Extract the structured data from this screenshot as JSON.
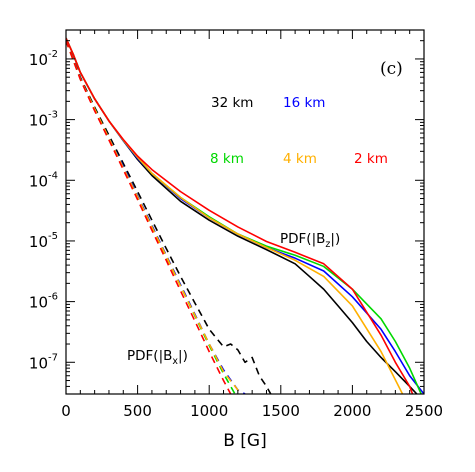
{
  "chart_data": {
    "type": "line",
    "panel_label": "(c)",
    "xlabel": "B [G]",
    "ylabel": "",
    "xlim": [
      0,
      2500
    ],
    "ylim": [
      3e-08,
      0.03
    ],
    "yscale": "log",
    "x_ticks": [
      0,
      500,
      1000,
      1500,
      2000,
      2500
    ],
    "x_tick_labels": [
      "0",
      "500",
      "1000",
      "1500",
      "2000",
      "2500"
    ],
    "y_ticks": [
      1e-07,
      1e-06,
      1e-05,
      0.0001,
      0.001,
      0.01
    ],
    "y_tick_labels": [
      {
        "base": "10",
        "exp": "-7"
      },
      {
        "base": "10",
        "exp": "-6"
      },
      {
        "base": "10",
        "exp": "-5"
      },
      {
        "base": "10",
        "exp": "-4"
      },
      {
        "base": "10",
        "exp": "-3"
      },
      {
        "base": "10",
        "exp": "-2"
      }
    ],
    "annotations": [
      {
        "name": "pdf-bz",
        "prefix": "PDF(|B",
        "sub": "z",
        "suffix": "|)"
      },
      {
        "name": "pdf-bx",
        "prefix": "PDF(|B",
        "sub": "x",
        "suffix": "|)"
      }
    ],
    "legend": [
      {
        "label": "32 km",
        "color": "#000000"
      },
      {
        "label": "16 km",
        "color": "#0000ff"
      },
      {
        "label": "8 km",
        "color": "#00d800"
      },
      {
        "label": "4 km",
        "color": "#ffb000"
      },
      {
        "label": "2 km",
        "color": "#ff0000"
      }
    ],
    "series": [
      {
        "name": "32 km",
        "component": "Bz",
        "style": "solid",
        "color": "#000000",
        "x": [
          0,
          50,
          100,
          200,
          300,
          400,
          500,
          600,
          800,
          1000,
          1200,
          1400,
          1600,
          1700,
          1800,
          1900,
          2000,
          2100,
          2200,
          2300,
          2400,
          2450
        ],
        "y": [
          0.022,
          0.012,
          0.006,
          0.0022,
          0.00095,
          0.00045,
          0.00022,
          0.00012,
          4.5e-05,
          2.2e-05,
          1.2e-05,
          7.2e-06,
          4.2e-06,
          2.6e-06,
          1.6e-06,
          8.5e-07,
          4.5e-07,
          2.2e-07,
          1.2e-07,
          7e-08,
          4e-08,
          3e-08
        ]
      },
      {
        "name": "16 km",
        "component": "Bz",
        "style": "solid",
        "color": "#0000ff",
        "x": [
          0,
          50,
          100,
          200,
          300,
          400,
          500,
          600,
          800,
          1000,
          1200,
          1400,
          1600,
          1800,
          2000,
          2200,
          2300,
          2400,
          2500
        ],
        "y": [
          0.022,
          0.012,
          0.006,
          0.0022,
          0.00095,
          0.00045,
          0.00023,
          0.00013,
          5e-05,
          2.4e-05,
          1.3e-05,
          7.8e-06,
          5.2e-06,
          3.2e-06,
          1.2e-06,
          3.5e-07,
          1.5e-07,
          6e-08,
          3e-08
        ]
      },
      {
        "name": "8 km",
        "component": "Bz",
        "style": "solid",
        "color": "#00d800",
        "x": [
          0,
          50,
          100,
          200,
          300,
          400,
          500,
          600,
          800,
          1000,
          1200,
          1400,
          1600,
          1800,
          2000,
          2200,
          2300,
          2400,
          2480
        ],
        "y": [
          0.022,
          0.012,
          0.006,
          0.0022,
          0.00095,
          0.00046,
          0.00024,
          0.00013,
          5.2e-05,
          2.5e-05,
          1.3e-05,
          8.2e-06,
          5.8e-06,
          3.8e-06,
          1.6e-06,
          5.2e-07,
          2.2e-07,
          8e-08,
          3e-08
        ]
      },
      {
        "name": "4 km",
        "component": "Bz",
        "style": "solid",
        "color": "#ffb000",
        "x": [
          0,
          50,
          100,
          200,
          300,
          400,
          500,
          600,
          800,
          1000,
          1200,
          1400,
          1600,
          1800,
          2000,
          2200,
          2350
        ],
        "y": [
          0.022,
          0.012,
          0.006,
          0.0022,
          0.00095,
          0.00046,
          0.00024,
          0.00013,
          5.2e-05,
          2.4e-05,
          1.3e-05,
          7.8e-06,
          4.8e-06,
          2.6e-06,
          8.5e-07,
          1.5e-07,
          3e-08
        ]
      },
      {
        "name": "2 km",
        "component": "Bz",
        "style": "solid",
        "color": "#ff0000",
        "x": [
          0,
          50,
          100,
          200,
          300,
          400,
          500,
          600,
          800,
          1000,
          1200,
          1400,
          1600,
          1800,
          2000,
          2200,
          2300,
          2400,
          2420
        ],
        "y": [
          0.022,
          0.012,
          0.006,
          0.0022,
          0.00095,
          0.00047,
          0.00025,
          0.00015,
          6.5e-05,
          3.2e-05,
          1.7e-05,
          9.8e-06,
          6.5e-06,
          4.2e-06,
          1.6e-06,
          2.8e-07,
          1e-07,
          4e-08,
          3e-08
        ]
      },
      {
        "name": "32 km",
        "component": "Bx",
        "style": "dashed",
        "color": "#000000",
        "x": [
          0,
          100,
          200,
          300,
          400,
          500,
          600,
          700,
          800,
          900,
          1000,
          1100,
          1150,
          1200,
          1250,
          1300,
          1350,
          1400,
          1430
        ],
        "y": [
          0.02,
          0.005,
          0.0016,
          0.00055,
          0.00019,
          6.5e-05,
          2.2e-05,
          7.5e-06,
          2.6e-06,
          9.5e-07,
          3.5e-07,
          1.8e-07,
          2e-07,
          1.6e-07,
          1e-07,
          1.2e-07,
          6e-08,
          4e-08,
          3e-08
        ]
      },
      {
        "name": "16 km",
        "component": "Bx",
        "style": "dashed",
        "color": "#0000ff",
        "x": [
          0,
          100,
          200,
          300,
          400,
          500,
          600,
          700,
          800,
          900,
          1000,
          1100,
          1200,
          1250
        ],
        "y": [
          0.02,
          0.0048,
          0.0015,
          0.0005,
          0.00017,
          5.5e-05,
          1.8e-05,
          5.8e-06,
          1.9e-06,
          6.2e-07,
          2e-07,
          7.5e-08,
          3.5e-08,
          3e-08
        ]
      },
      {
        "name": "8 km",
        "component": "Bx",
        "style": "dashed",
        "color": "#00d800",
        "x": [
          0,
          100,
          200,
          300,
          400,
          500,
          600,
          700,
          800,
          900,
          1000,
          1100,
          1180
        ],
        "y": [
          0.02,
          0.0047,
          0.0015,
          0.00049,
          0.00016,
          5.2e-05,
          1.7e-05,
          5.5e-06,
          1.8e-06,
          5.8e-07,
          1.9e-07,
          6.5e-08,
          3e-08
        ]
      },
      {
        "name": "4 km",
        "component": "Bx",
        "style": "dashed",
        "color": "#ffb000",
        "x": [
          0,
          100,
          200,
          300,
          400,
          500,
          600,
          700,
          800,
          900,
          1000,
          1100,
          1200,
          1220
        ],
        "y": [
          0.02,
          0.0047,
          0.0015,
          0.00049,
          0.00016,
          5.3e-05,
          1.7e-05,
          5.6e-06,
          1.8e-06,
          6e-07,
          2e-07,
          7e-08,
          3.5e-08,
          3e-08
        ]
      },
      {
        "name": "2 km",
        "component": "Bx",
        "style": "dashed",
        "color": "#ff0000",
        "x": [
          0,
          100,
          200,
          300,
          400,
          500,
          600,
          700,
          800,
          900,
          1000,
          1100,
          1150
        ],
        "y": [
          0.02,
          0.0046,
          0.0014,
          0.00046,
          0.00015,
          4.8e-05,
          1.5e-05,
          4.8e-06,
          1.5e-06,
          4.8e-07,
          1.5e-07,
          5e-08,
          3e-08
        ]
      }
    ]
  }
}
